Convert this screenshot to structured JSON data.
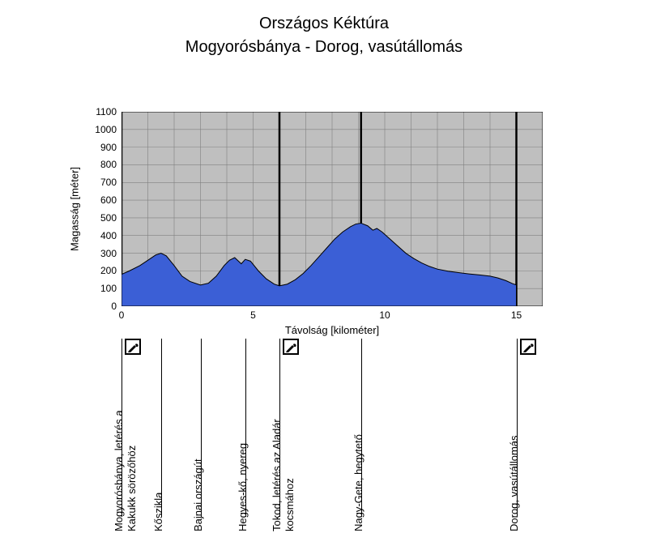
{
  "title": "Országos Kéktúra",
  "subtitle": "Mogyorósbánya - Dorog, vasútállomás",
  "chart": {
    "type": "area",
    "background_color": "#bfbfbf",
    "fill_color": "#3b5fd6",
    "stroke_color": "#000000",
    "grid_color": "#808080",
    "xlabel": "Távolság [kilométer]",
    "ylabel": "Magasság [méter]",
    "xlim": [
      0,
      16
    ],
    "ylim": [
      0,
      1100
    ],
    "xtick_step": 5,
    "ytick_step": 100,
    "xticks": [
      0,
      5,
      10,
      15
    ],
    "yticks": [
      0,
      100,
      200,
      300,
      400,
      500,
      600,
      700,
      800,
      900,
      1000,
      1100
    ],
    "profile": [
      [
        0.0,
        180
      ],
      [
        0.3,
        200
      ],
      [
        0.7,
        230
      ],
      [
        1.0,
        260
      ],
      [
        1.3,
        290
      ],
      [
        1.5,
        300
      ],
      [
        1.7,
        285
      ],
      [
        2.0,
        230
      ],
      [
        2.3,
        170
      ],
      [
        2.6,
        140
      ],
      [
        3.0,
        120
      ],
      [
        3.3,
        130
      ],
      [
        3.6,
        170
      ],
      [
        3.9,
        230
      ],
      [
        4.1,
        260
      ],
      [
        4.3,
        275
      ],
      [
        4.55,
        240
      ],
      [
        4.7,
        265
      ],
      [
        4.9,
        255
      ],
      [
        5.2,
        200
      ],
      [
        5.5,
        155
      ],
      [
        5.8,
        125
      ],
      [
        6.0,
        115
      ],
      [
        6.3,
        125
      ],
      [
        6.6,
        150
      ],
      [
        6.9,
        185
      ],
      [
        7.2,
        230
      ],
      [
        7.5,
        280
      ],
      [
        7.8,
        330
      ],
      [
        8.1,
        380
      ],
      [
        8.4,
        420
      ],
      [
        8.7,
        450
      ],
      [
        8.9,
        465
      ],
      [
        9.1,
        470
      ],
      [
        9.35,
        455
      ],
      [
        9.55,
        430
      ],
      [
        9.7,
        440
      ],
      [
        9.9,
        420
      ],
      [
        10.2,
        380
      ],
      [
        10.5,
        340
      ],
      [
        10.8,
        300
      ],
      [
        11.1,
        270
      ],
      [
        11.4,
        245
      ],
      [
        11.7,
        225
      ],
      [
        12.0,
        210
      ],
      [
        12.4,
        198
      ],
      [
        12.8,
        190
      ],
      [
        13.2,
        183
      ],
      [
        13.6,
        177
      ],
      [
        14.0,
        170
      ],
      [
        14.3,
        160
      ],
      [
        14.6,
        145
      ],
      [
        14.85,
        128
      ],
      [
        15.0,
        120
      ]
    ],
    "label_fontsize": 13,
    "tick_fontsize": 12
  },
  "waypoints": [
    {
      "x": 0.0,
      "label": "Mogyorósbánya, letérés a Kakukk sörözőhöz",
      "stamp": true
    },
    {
      "x": 1.5,
      "label": "Kőszikla",
      "stamp": false
    },
    {
      "x": 3.0,
      "label": "Bajnai országút",
      "stamp": false
    },
    {
      "x": 4.7,
      "label": "Hegyes-kő, nyereg",
      "stamp": false
    },
    {
      "x": 6.0,
      "label": "Tokod, letérés az Aladár kocsmához",
      "stamp": true
    },
    {
      "x": 9.1,
      "label": "Nagy-Gete, hegytető",
      "stamp": false
    },
    {
      "x": 15.0,
      "label": "Dorog, vasútállomás",
      "stamp": true
    }
  ]
}
